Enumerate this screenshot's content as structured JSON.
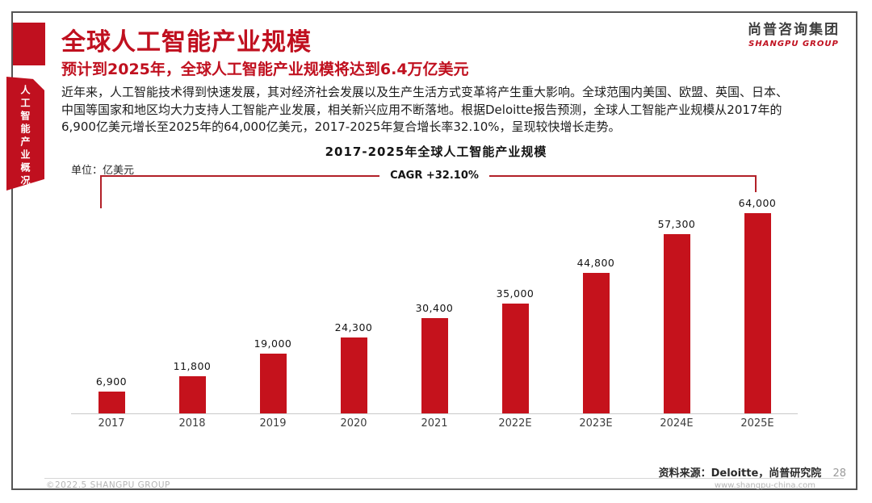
{
  "page": {
    "sidebar_tab": "人工智能产业概况",
    "header": {
      "title": "全球人工智能产业规模",
      "subtitle": "预计到2025年，全球人工智能产业规模将达到6.4万亿美元"
    },
    "logo": {
      "cn": "尚普咨询集团",
      "en": "SHANGPU GROUP"
    },
    "body_lines": [
      "近年来，人工智能技术得到快速发展，其对经济社会发展以及生产生活方式变革将产生重大影响。全球范围内美国、欧盟、英国、日本、",
      "中国等国家和地区均大力支持人工智能产业发展，相关新兴应用不断落地。根据Deloitte报告预测，全球人工智能产业规模从2017年的",
      "6,900亿美元增长至2025年的64,000亿美元，2017-2025年复合增长率32.10%，呈现较快增长走势。"
    ],
    "footer": {
      "copyright": "©2022.5 SHANGPU GROUP",
      "source": "资料来源：Deloitte，尚普研究院",
      "page_number": "28",
      "website": "www.shangpu-china.com"
    }
  },
  "chart_data": {
    "type": "bar",
    "title": "2017-2025年全球人工智能产业规模",
    "unit_label": "单位：亿美元",
    "cagr_label": "CAGR +32.10%",
    "categories": [
      "2017",
      "2018",
      "2019",
      "2020",
      "2021",
      "2022E",
      "2023E",
      "2024E",
      "2025E"
    ],
    "values": [
      6900,
      11800,
      19000,
      24300,
      30400,
      35000,
      44800,
      57300,
      64000
    ],
    "xlabel": "",
    "ylabel": "亿美元",
    "ylim": [
      0,
      64000
    ],
    "grid": false,
    "legend": "none",
    "bar_color": "#c5121c",
    "accent_color": "#c0101f",
    "bracket_color": "#b22028"
  }
}
